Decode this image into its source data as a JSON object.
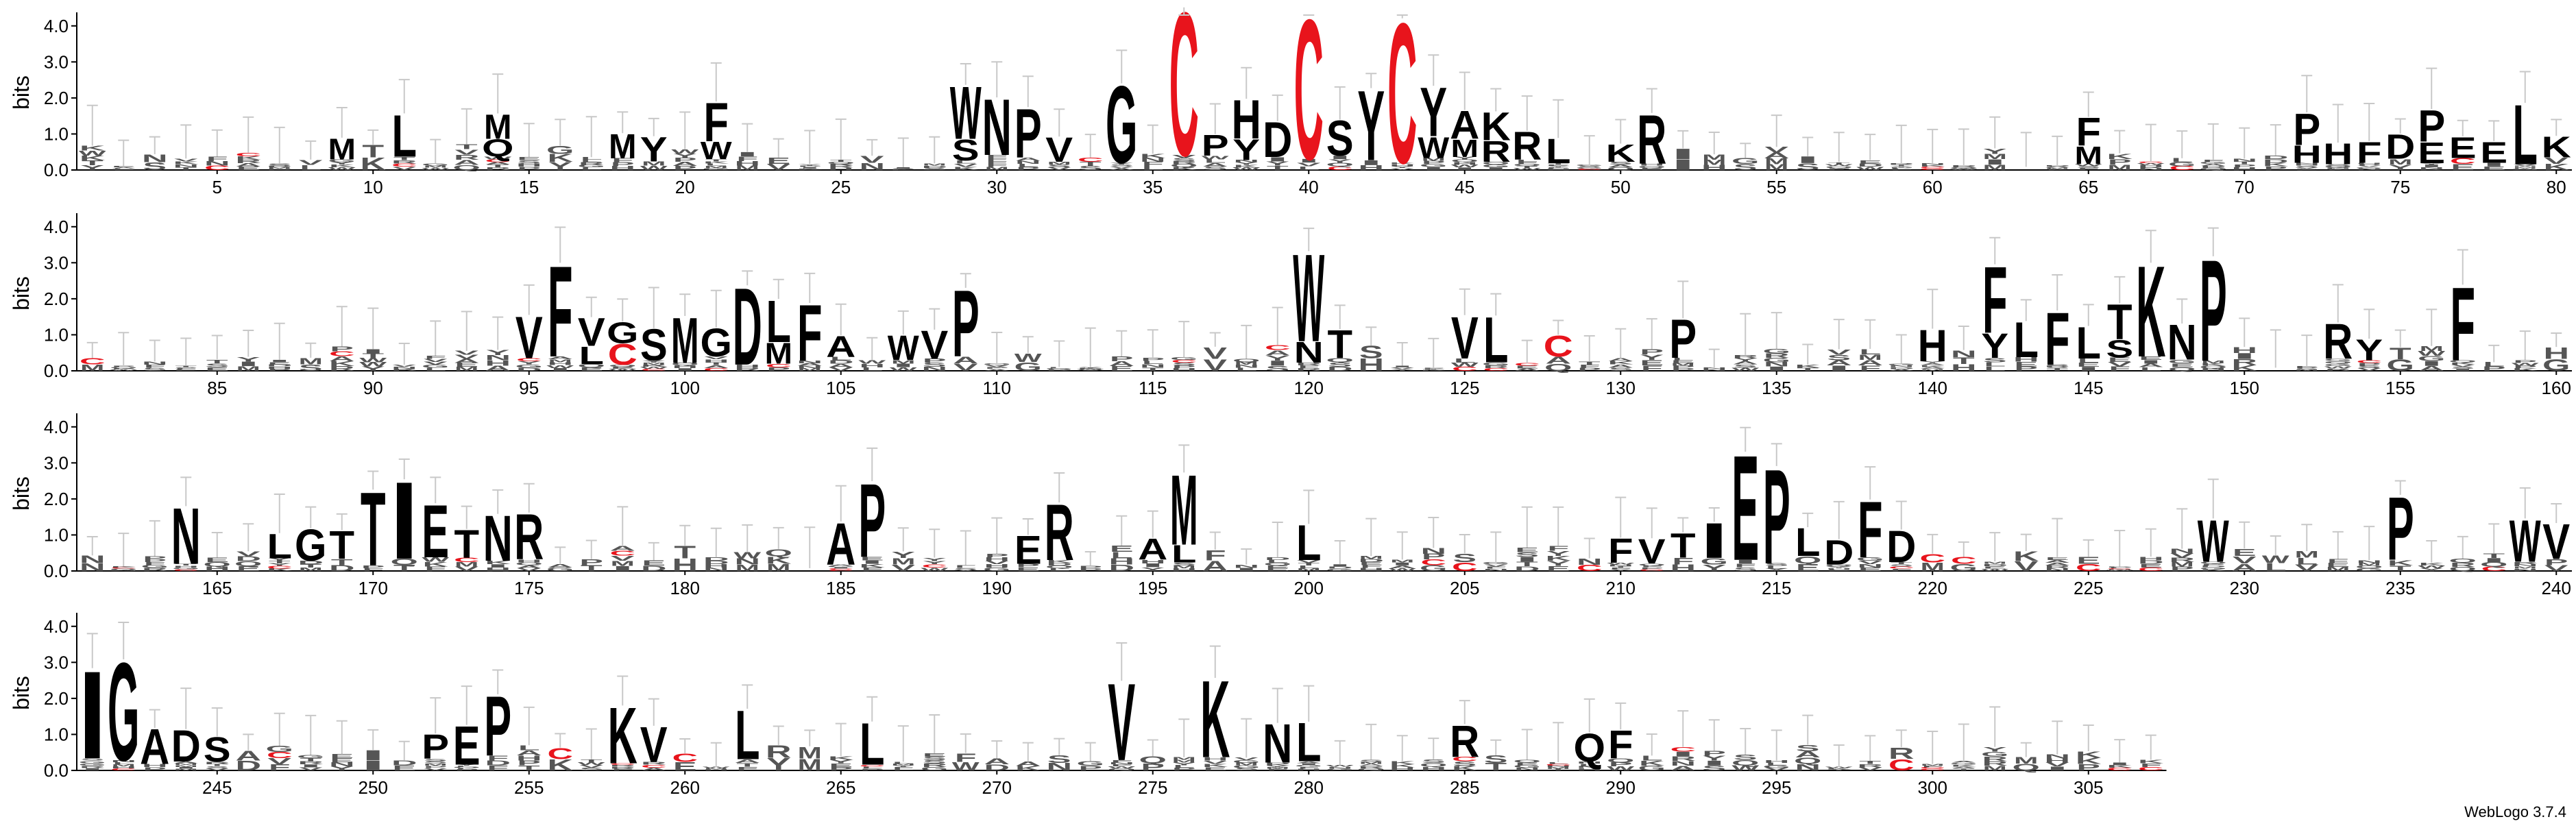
{
  "chart_data": {
    "type": "sequence_logo",
    "ylabel": "bits",
    "ylim": [
      0,
      4.3
    ],
    "yticks": [
      "0.0",
      "1.0",
      "2.0",
      "3.0",
      "4.0"
    ],
    "positions": [
      1,
      307
    ],
    "rows": [
      {
        "start": 1,
        "end": 80,
        "xticks": [
          5,
          10,
          15,
          20,
          25,
          30,
          35,
          40,
          45,
          50,
          55,
          60,
          65,
          70,
          75,
          80
        ]
      },
      {
        "start": 81,
        "end": 160,
        "xticks": [
          85,
          90,
          95,
          100,
          105,
          110,
          115,
          120,
          125,
          130,
          135,
          140,
          145,
          150,
          155,
          160
        ]
      },
      {
        "start": 161,
        "end": 240,
        "xticks": [
          165,
          170,
          175,
          180,
          185,
          190,
          195,
          200,
          205,
          210,
          215,
          220,
          225,
          230,
          235,
          240
        ]
      },
      {
        "start": 241,
        "end": 307,
        "xticks": [
          245,
          250,
          255,
          260,
          265,
          270,
          275,
          280,
          285,
          290,
          295,
          300,
          305
        ]
      }
    ],
    "colors": {
      "cysteine": "#e8141c",
      "default": "#000000",
      "errorbar": "#c8c8c8"
    },
    "prominent": [
      {
        "pos": 9,
        "letters": [
          {
            "l": "M",
            "h": 0.6
          }
        ]
      },
      {
        "pos": 11,
        "letters": [
          {
            "l": "L",
            "h": 1.2
          }
        ]
      },
      {
        "pos": 14,
        "letters": [
          {
            "l": "M",
            "h": 0.7
          },
          {
            "l": "Q",
            "h": 0.5
          }
        ]
      },
      {
        "pos": 19,
        "letters": [
          {
            "l": "Y",
            "h": 0.7
          }
        ]
      },
      {
        "pos": 18,
        "letters": [
          {
            "l": "M",
            "h": 0.7
          }
        ]
      },
      {
        "pos": 21,
        "letters": [
          {
            "l": "F",
            "h": 1.1
          },
          {
            "l": "W",
            "h": 0.5
          }
        ]
      },
      {
        "pos": 29,
        "letters": [
          {
            "l": "W",
            "h": 1.5
          },
          {
            "l": "S",
            "h": 0.6
          }
        ]
      },
      {
        "pos": 30,
        "letters": [
          {
            "l": "N",
            "h": 1.6
          }
        ]
      },
      {
        "pos": 31,
        "letters": [
          {
            "l": "P",
            "h": 1.4
          }
        ]
      },
      {
        "pos": 32,
        "letters": [
          {
            "l": "V",
            "h": 0.7
          }
        ]
      },
      {
        "pos": 34,
        "letters": [
          {
            "l": "G",
            "h": 2.2
          }
        ]
      },
      {
        "pos": 36,
        "letters": [
          {
            "l": "C",
            "h": 4.1
          }
        ]
      },
      {
        "pos": 37,
        "letters": [
          {
            "l": "P",
            "h": 0.6
          }
        ]
      },
      {
        "pos": 38,
        "letters": [
          {
            "l": "H",
            "h": 1.1
          },
          {
            "l": "Y",
            "h": 0.6
          }
        ]
      },
      {
        "pos": 39,
        "letters": [
          {
            "l": "D",
            "h": 1.0
          }
        ]
      },
      {
        "pos": 40,
        "letters": [
          {
            "l": "C",
            "h": 4.0
          }
        ]
      },
      {
        "pos": 41,
        "letters": [
          {
            "l": "S",
            "h": 1.0
          }
        ]
      },
      {
        "pos": 42,
        "letters": [
          {
            "l": "Y",
            "h": 2.0
          }
        ]
      },
      {
        "pos": 43,
        "letters": [
          {
            "l": "C",
            "h": 4.0
          }
        ]
      },
      {
        "pos": 44,
        "letters": [
          {
            "l": "Y",
            "h": 1.4
          },
          {
            "l": "W",
            "h": 0.6
          }
        ]
      },
      {
        "pos": 45,
        "letters": [
          {
            "l": "A",
            "h": 0.8
          },
          {
            "l": "M",
            "h": 0.5
          }
        ]
      },
      {
        "pos": 46,
        "letters": [
          {
            "l": "K",
            "h": 0.8
          },
          {
            "l": "R",
            "h": 0.6
          }
        ]
      },
      {
        "pos": 47,
        "letters": [
          {
            "l": "R",
            "h": 0.8
          }
        ]
      },
      {
        "pos": 48,
        "letters": [
          {
            "l": "L",
            "h": 0.7
          }
        ]
      },
      {
        "pos": 50,
        "letters": [
          {
            "l": "K",
            "h": 0.5
          }
        ]
      },
      {
        "pos": 51,
        "letters": [
          {
            "l": "R",
            "h": 1.4
          }
        ]
      },
      {
        "pos": 65,
        "letters": [
          {
            "l": "F",
            "h": 0.8
          },
          {
            "l": "M",
            "h": 0.5
          }
        ]
      },
      {
        "pos": 72,
        "letters": [
          {
            "l": "P",
            "h": 0.9
          },
          {
            "l": "H",
            "h": 0.5
          }
        ]
      },
      {
        "pos": 73,
        "letters": [
          {
            "l": "H",
            "h": 0.6
          }
        ]
      },
      {
        "pos": 74,
        "letters": [
          {
            "l": "F",
            "h": 0.6
          }
        ]
      },
      {
        "pos": 75,
        "letters": [
          {
            "l": "D",
            "h": 0.7
          }
        ]
      },
      {
        "pos": 76,
        "letters": [
          {
            "l": "P",
            "h": 0.9
          },
          {
            "l": "E",
            "h": 0.6
          }
        ]
      },
      {
        "pos": 77,
        "letters": [
          {
            "l": "E",
            "h": 0.6
          }
        ]
      },
      {
        "pos": 78,
        "letters": [
          {
            "l": "E",
            "h": 0.6
          }
        ]
      },
      {
        "pos": 79,
        "letters": [
          {
            "l": "L",
            "h": 1.7
          }
        ]
      },
      {
        "pos": 80,
        "letters": [
          {
            "l": "K",
            "h": 0.6
          }
        ]
      },
      {
        "pos": 95,
        "letters": [
          {
            "l": "V",
            "h": 1.2
          }
        ]
      },
      {
        "pos": 96,
        "letters": [
          {
            "l": "F",
            "h": 2.6
          }
        ]
      },
      {
        "pos": 97,
        "letters": [
          {
            "l": "V",
            "h": 0.8
          },
          {
            "l": "L",
            "h": 0.5
          }
        ]
      },
      {
        "pos": 98,
        "letters": [
          {
            "l": "G",
            "h": 0.6
          },
          {
            "l": "C",
            "h": 0.6
          }
        ]
      },
      {
        "pos": 99,
        "letters": [
          {
            "l": "S",
            "h": 0.9
          }
        ]
      },
      {
        "pos": 100,
        "letters": [
          {
            "l": "M",
            "h": 1.3
          }
        ]
      },
      {
        "pos": 101,
        "letters": [
          {
            "l": "G",
            "h": 0.8
          }
        ]
      },
      {
        "pos": 102,
        "letters": [
          {
            "l": "D",
            "h": 2.2
          }
        ]
      },
      {
        "pos": 103,
        "letters": [
          {
            "l": "L",
            "h": 1.2
          },
          {
            "l": "M",
            "h": 0.6
          }
        ]
      },
      {
        "pos": 104,
        "letters": [
          {
            "l": "F",
            "h": 1.6
          }
        ]
      },
      {
        "pos": 105,
        "letters": [
          {
            "l": "A",
            "h": 0.6
          }
        ]
      },
      {
        "pos": 107,
        "letters": [
          {
            "l": "W",
            "h": 0.7
          }
        ]
      },
      {
        "pos": 108,
        "letters": [
          {
            "l": "V",
            "h": 0.8
          }
        ]
      },
      {
        "pos": 109,
        "letters": [
          {
            "l": "P",
            "h": 1.9
          }
        ]
      },
      {
        "pos": 120,
        "letters": [
          {
            "l": "W",
            "h": 2.5
          },
          {
            "l": "N",
            "h": 0.6
          }
        ]
      },
      {
        "pos": 121,
        "letters": [
          {
            "l": "T",
            "h": 0.8
          }
        ]
      },
      {
        "pos": 125,
        "letters": [
          {
            "l": "V",
            "h": 1.2
          }
        ]
      },
      {
        "pos": 126,
        "letters": [
          {
            "l": "L",
            "h": 1.3
          }
        ]
      },
      {
        "pos": 128,
        "letters": [
          {
            "l": "C",
            "h": 0.6
          }
        ]
      },
      {
        "pos": 132,
        "letters": [
          {
            "l": "P",
            "h": 1.1
          }
        ]
      },
      {
        "pos": 140,
        "letters": [
          {
            "l": "H",
            "h": 0.9
          }
        ]
      },
      {
        "pos": 142,
        "letters": [
          {
            "l": "F",
            "h": 1.9
          },
          {
            "l": "Y",
            "h": 0.7
          }
        ]
      },
      {
        "pos": 143,
        "letters": [
          {
            "l": "L",
            "h": 1.0
          }
        ]
      },
      {
        "pos": 144,
        "letters": [
          {
            "l": "F",
            "h": 1.5
          }
        ]
      },
      {
        "pos": 145,
        "letters": [
          {
            "l": "L",
            "h": 0.9
          }
        ]
      },
      {
        "pos": 146,
        "letters": [
          {
            "l": "T",
            "h": 1.0
          },
          {
            "l": "S",
            "h": 0.5
          }
        ]
      },
      {
        "pos": 147,
        "letters": [
          {
            "l": "K",
            "h": 2.6
          }
        ]
      },
      {
        "pos": 148,
        "letters": [
          {
            "l": "N",
            "h": 1.0
          }
        ]
      },
      {
        "pos": 149,
        "letters": [
          {
            "l": "P",
            "h": 2.9
          }
        ]
      },
      {
        "pos": 153,
        "letters": [
          {
            "l": "R",
            "h": 1.0
          }
        ]
      },
      {
        "pos": 154,
        "letters": [
          {
            "l": "Y",
            "h": 0.6
          }
        ]
      },
      {
        "pos": 157,
        "letters": [
          {
            "l": "F",
            "h": 2.1
          }
        ]
      },
      {
        "pos": 164,
        "letters": [
          {
            "l": "N",
            "h": 1.6
          }
        ]
      },
      {
        "pos": 167,
        "letters": [
          {
            "l": "L",
            "h": 0.7
          }
        ]
      },
      {
        "pos": 168,
        "letters": [
          {
            "l": "G",
            "h": 0.9
          }
        ]
      },
      {
        "pos": 169,
        "letters": [
          {
            "l": "T",
            "h": 0.8
          }
        ]
      },
      {
        "pos": 170,
        "letters": [
          {
            "l": "T",
            "h": 2.1
          }
        ]
      },
      {
        "pos": 171,
        "letters": [
          {
            "l": "I",
            "h": 2.2
          }
        ]
      },
      {
        "pos": 172,
        "letters": [
          {
            "l": "E",
            "h": 1.5
          }
        ]
      },
      {
        "pos": 173,
        "letters": [
          {
            "l": "T",
            "h": 0.8
          }
        ]
      },
      {
        "pos": 174,
        "letters": [
          {
            "l": "N",
            "h": 1.3
          }
        ]
      },
      {
        "pos": 175,
        "letters": [
          {
            "l": "R",
            "h": 1.3
          }
        ]
      },
      {
        "pos": 185,
        "letters": [
          {
            "l": "A",
            "h": 1.2
          }
        ]
      },
      {
        "pos": 186,
        "letters": [
          {
            "l": "P",
            "h": 2.1
          }
        ]
      },
      {
        "pos": 191,
        "letters": [
          {
            "l": "E",
            "h": 0.8
          }
        ]
      },
      {
        "pos": 192,
        "letters": [
          {
            "l": "R",
            "h": 1.6
          }
        ]
      },
      {
        "pos": 195,
        "letters": [
          {
            "l": "A",
            "h": 0.6
          }
        ]
      },
      {
        "pos": 196,
        "letters": [
          {
            "l": "M",
            "h": 2.0
          },
          {
            "l": "L",
            "h": 0.5
          }
        ]
      },
      {
        "pos": 200,
        "letters": [
          {
            "l": "L",
            "h": 1.0
          }
        ]
      },
      {
        "pos": 210,
        "letters": [
          {
            "l": "F",
            "h": 0.7
          }
        ]
      },
      {
        "pos": 211,
        "letters": [
          {
            "l": "V",
            "h": 0.7
          }
        ]
      },
      {
        "pos": 212,
        "letters": [
          {
            "l": "T",
            "h": 0.7
          }
        ]
      },
      {
        "pos": 213,
        "letters": [
          {
            "l": "I",
            "h": 1.0
          }
        ]
      },
      {
        "pos": 214,
        "letters": [
          {
            "l": "E",
            "h": 3.0
          }
        ]
      },
      {
        "pos": 215,
        "letters": [
          {
            "l": "P",
            "h": 2.7
          }
        ]
      },
      {
        "pos": 216,
        "letters": [
          {
            "l": "L",
            "h": 0.8
          }
        ]
      },
      {
        "pos": 217,
        "letters": [
          {
            "l": "D",
            "h": 0.7
          }
        ]
      },
      {
        "pos": 218,
        "letters": [
          {
            "l": "F",
            "h": 1.6
          }
        ]
      },
      {
        "pos": 219,
        "letters": [
          {
            "l": "D",
            "h": 0.9
          }
        ]
      },
      {
        "pos": 229,
        "letters": [
          {
            "l": "W",
            "h": 1.2
          }
        ]
      },
      {
        "pos": 235,
        "letters": [
          {
            "l": "P",
            "h": 1.8
          }
        ]
      },
      {
        "pos": 239,
        "letters": [
          {
            "l": "W",
            "h": 1.2
          }
        ]
      },
      {
        "pos": 240,
        "letters": [
          {
            "l": "V",
            "h": 1.0
          }
        ]
      },
      {
        "pos": 241,
        "letters": [
          {
            "l": "I",
            "h": 2.5
          }
        ]
      },
      {
        "pos": 242,
        "letters": [
          {
            "l": "G",
            "h": 2.8
          }
        ]
      },
      {
        "pos": 243,
        "letters": [
          {
            "l": "A",
            "h": 1.0
          }
        ]
      },
      {
        "pos": 244,
        "letters": [
          {
            "l": "D",
            "h": 0.9
          }
        ]
      },
      {
        "pos": 245,
        "letters": [
          {
            "l": "S",
            "h": 0.7
          }
        ]
      },
      {
        "pos": 252,
        "letters": [
          {
            "l": "P",
            "h": 0.7
          }
        ]
      },
      {
        "pos": 253,
        "letters": [
          {
            "l": "E",
            "h": 1.1
          }
        ]
      },
      {
        "pos": 254,
        "letters": [
          {
            "l": "P",
            "h": 1.7
          }
        ]
      },
      {
        "pos": 258,
        "letters": [
          {
            "l": "K",
            "h": 1.6
          }
        ]
      },
      {
        "pos": 259,
        "letters": [
          {
            "l": "V",
            "h": 1.0
          }
        ]
      },
      {
        "pos": 262,
        "letters": [
          {
            "l": "L",
            "h": 1.4
          }
        ]
      },
      {
        "pos": 266,
        "letters": [
          {
            "l": "L",
            "h": 1.2
          }
        ]
      },
      {
        "pos": 274,
        "letters": [
          {
            "l": "V",
            "h": 2.2
          }
        ]
      },
      {
        "pos": 277,
        "letters": [
          {
            "l": "K",
            "h": 2.2
          }
        ]
      },
      {
        "pos": 279,
        "letters": [
          {
            "l": "N",
            "h": 1.1
          }
        ]
      },
      {
        "pos": 280,
        "letters": [
          {
            "l": "L",
            "h": 1.1
          }
        ]
      },
      {
        "pos": 285,
        "letters": [
          {
            "l": "R",
            "h": 0.9
          }
        ]
      },
      {
        "pos": 289,
        "letters": [
          {
            "l": "Q",
            "h": 0.8
          }
        ]
      },
      {
        "pos": 290,
        "letters": [
          {
            "l": "F",
            "h": 0.8
          }
        ]
      }
    ],
    "low_alphabet": "ACDEFGHIKLMNPQRSTVWY"
  },
  "footer": {
    "version_label": "WebLogo 3.7.4"
  }
}
